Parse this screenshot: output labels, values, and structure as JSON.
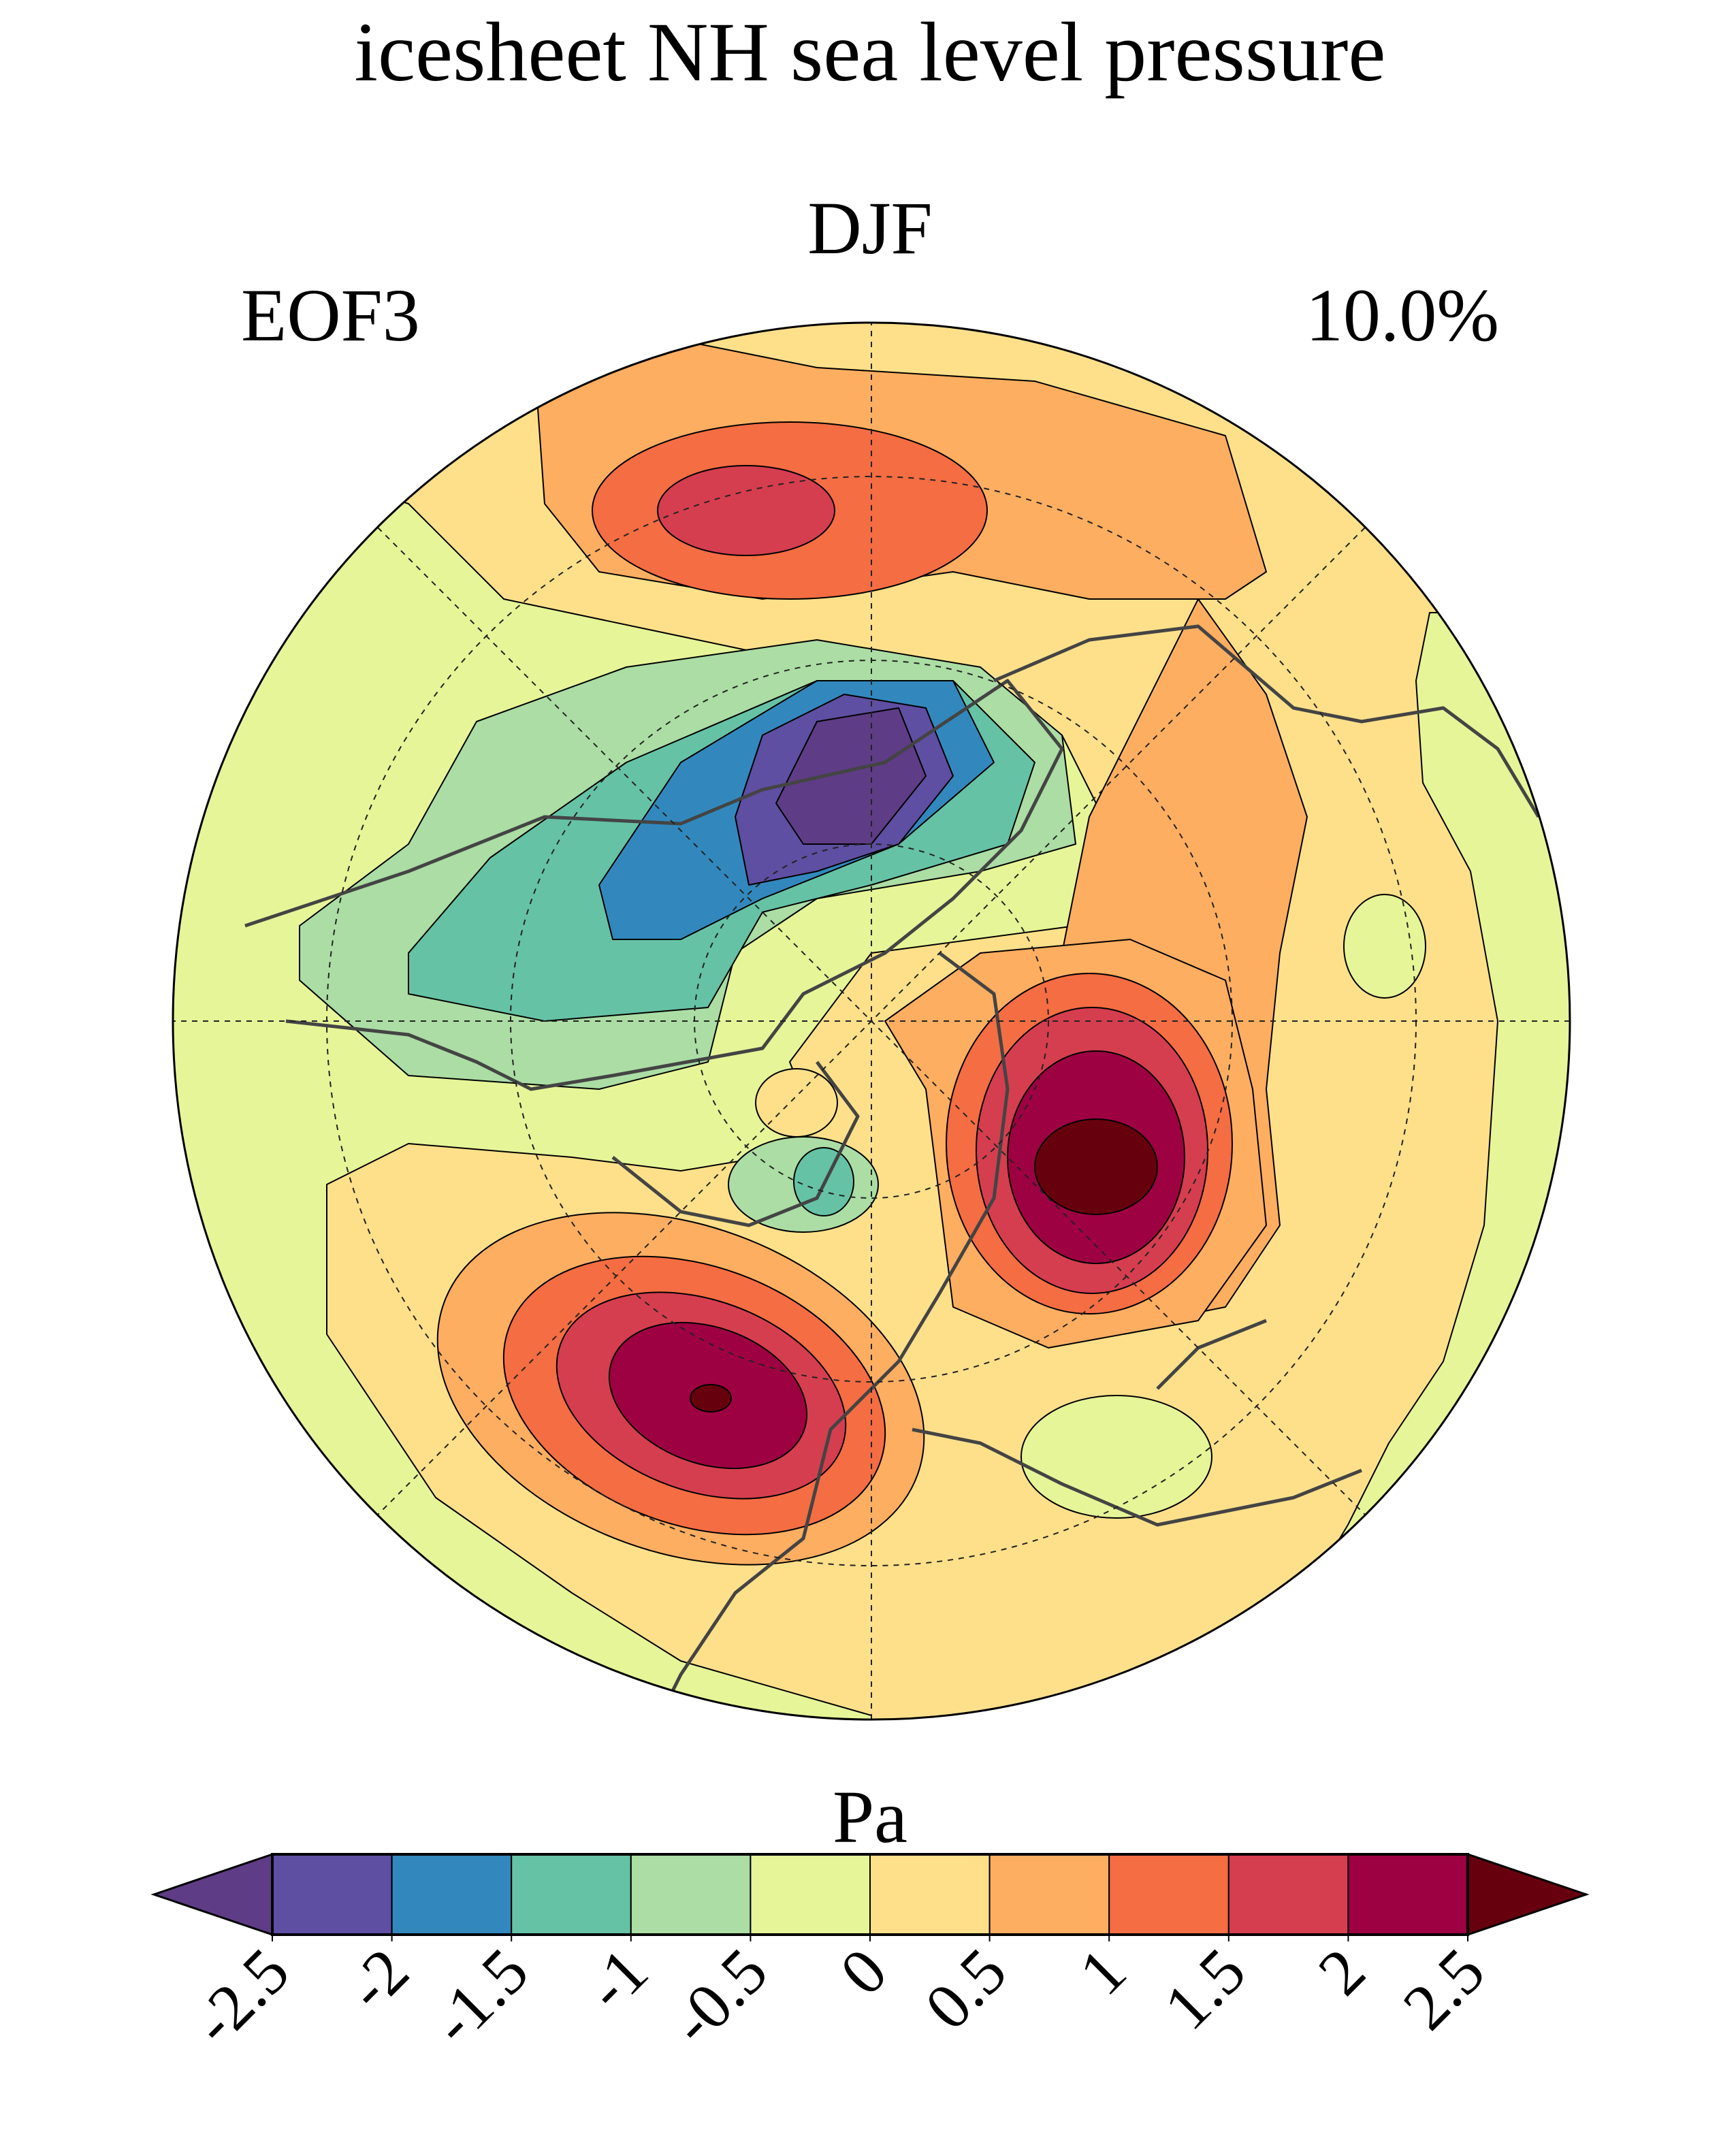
{
  "title": "icesheet NH sea level pressure",
  "season": "DJF",
  "mode_label": "EOF3",
  "variance_explained": "10.0%",
  "colorbar": {
    "unit_label": "Pa",
    "ticks": [
      "-2.5",
      "-2",
      "-1.5",
      "-1",
      "-0.5",
      "0",
      "0.5",
      "1",
      "1.5",
      "2",
      "2.5"
    ],
    "levels": [
      -2.5,
      -2,
      -1.5,
      -1,
      -0.5,
      0,
      0.5,
      1,
      1.5,
      2,
      2.5
    ],
    "extend": "both",
    "colors": [
      "#5e3c86",
      "#5e4fa2",
      "#3288bd",
      "#66c2a5",
      "#abdda4",
      "#e6f598",
      "#fee08b",
      "#fdae61",
      "#f46d43",
      "#d53e4f",
      "#9e0142",
      "#67000d"
    ]
  },
  "map": {
    "projection": "north polar stereographic",
    "features": [
      "positive center over Europe/Scandinavia",
      "positive center over North Atlantic",
      "negative center over North America/Canada",
      "positive center over North Pacific"
    ]
  }
}
